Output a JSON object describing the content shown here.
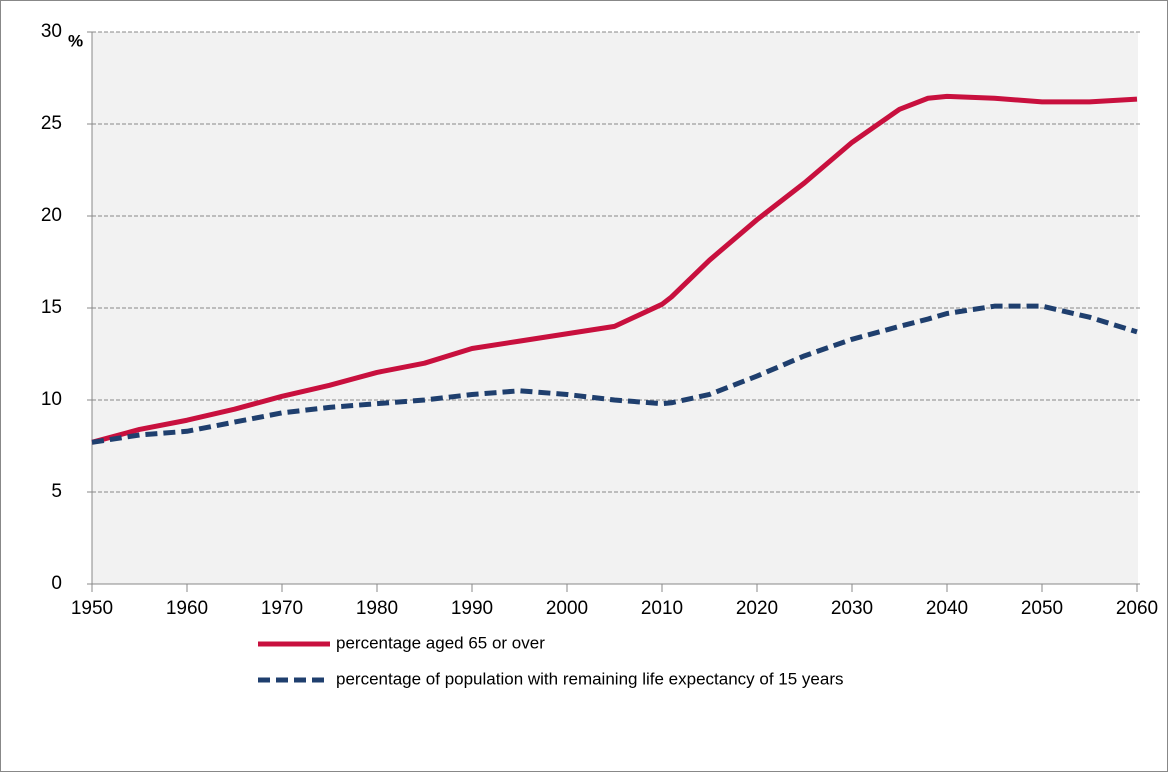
{
  "chart_data": {
    "type": "line",
    "y_unit": "%",
    "x": [
      1950,
      1955,
      1960,
      1965,
      1970,
      1975,
      1980,
      1985,
      1990,
      1995,
      2000,
      2005,
      2010,
      2011,
      2015,
      2020,
      2025,
      2030,
      2035,
      2038,
      2040,
      2045,
      2050,
      2055,
      2060
    ],
    "series": [
      {
        "name": "percentage aged 65 or over",
        "color": "#c8103e",
        "dash": false,
        "values": [
          7.7,
          8.4,
          8.9,
          9.5,
          10.2,
          10.8,
          11.5,
          12.0,
          12.8,
          13.2,
          13.6,
          14.0,
          15.2,
          15.6,
          17.6,
          19.8,
          21.8,
          24.0,
          25.8,
          26.4,
          26.5,
          26.4,
          26.2,
          26.2,
          26.35
        ]
      },
      {
        "name": "percentage of population with remaining life expectancy of 15 years",
        "color": "#1f3f6e",
        "dash": true,
        "values": [
          7.7,
          8.1,
          8.3,
          8.8,
          9.3,
          9.6,
          9.8,
          10.0,
          10.3,
          10.5,
          10.3,
          10.0,
          9.8,
          9.85,
          10.3,
          11.3,
          12.4,
          13.3,
          14.0,
          14.4,
          14.7,
          15.1,
          15.1,
          14.5,
          13.7
        ]
      }
    ],
    "xlim": [
      1950,
      2060
    ],
    "xticks": [
      1950,
      1960,
      1970,
      1980,
      1990,
      2000,
      2010,
      2020,
      2030,
      2040,
      2050,
      2060
    ],
    "ylim": [
      0,
      30
    ],
    "yticks": [
      0,
      5,
      10,
      15,
      20,
      25,
      30
    ],
    "grid": true
  }
}
